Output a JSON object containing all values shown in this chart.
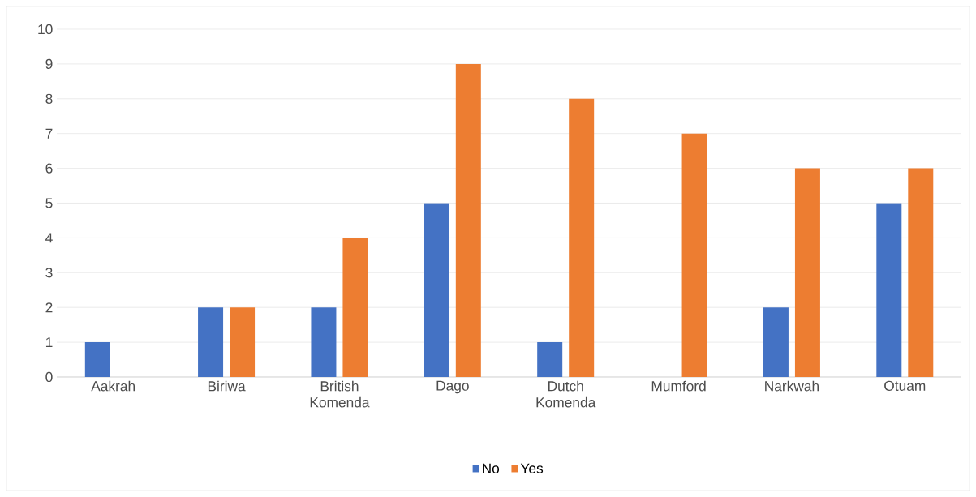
{
  "chart_data": {
    "type": "bar",
    "categories": [
      "Aakrah",
      "Biriwa",
      "British Komenda",
      "Dago",
      "Dutch Komenda",
      "Mumford",
      "Narkwah",
      "Otuam"
    ],
    "series": [
      {
        "name": "No",
        "color": "#4472c4",
        "values": [
          1,
          2,
          2,
          5,
          1,
          null,
          2,
          5
        ]
      },
      {
        "name": "Yes",
        "color": "#ed7d31",
        "values": [
          null,
          2,
          4,
          9,
          8,
          7,
          6,
          6
        ]
      }
    ],
    "ylim": [
      0,
      10
    ],
    "yticks": [
      0,
      1,
      2,
      3,
      4,
      5,
      6,
      7,
      8,
      9,
      10
    ],
    "grid": "y",
    "legend": "bottom"
  }
}
